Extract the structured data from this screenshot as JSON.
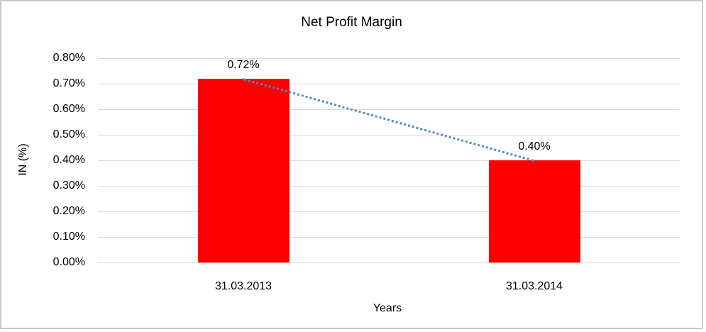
{
  "chart_data": {
    "type": "bar",
    "title": "Net Profit Margin",
    "categories": [
      "31.03.2013",
      "31.03.2014"
    ],
    "series": [
      {
        "name": "Net Profit Margin",
        "values": [
          0.72,
          0.4
        ]
      }
    ],
    "data_labels": [
      "0.72%",
      "0.40%"
    ],
    "xlabel": "Years",
    "ylabel": "IN (%)",
    "ylim": [
      0,
      0.8
    ],
    "ytick_step": 0.1,
    "ytick_labels": [
      "0.00%",
      "0.10%",
      "0.20%",
      "0.30%",
      "0.40%",
      "0.50%",
      "0.60%",
      "0.70%",
      "0.80%"
    ],
    "grid": true,
    "legend": "none",
    "trendline": {
      "type": "linear",
      "style": "dotted",
      "from_value": 0.72,
      "to_value": 0.4
    },
    "colors": {
      "bar": "#FF0000",
      "gridline": "#D9D9D9",
      "trendline": "#5089C5",
      "text": "#000000",
      "frame_border": "#C9C9C9"
    }
  }
}
